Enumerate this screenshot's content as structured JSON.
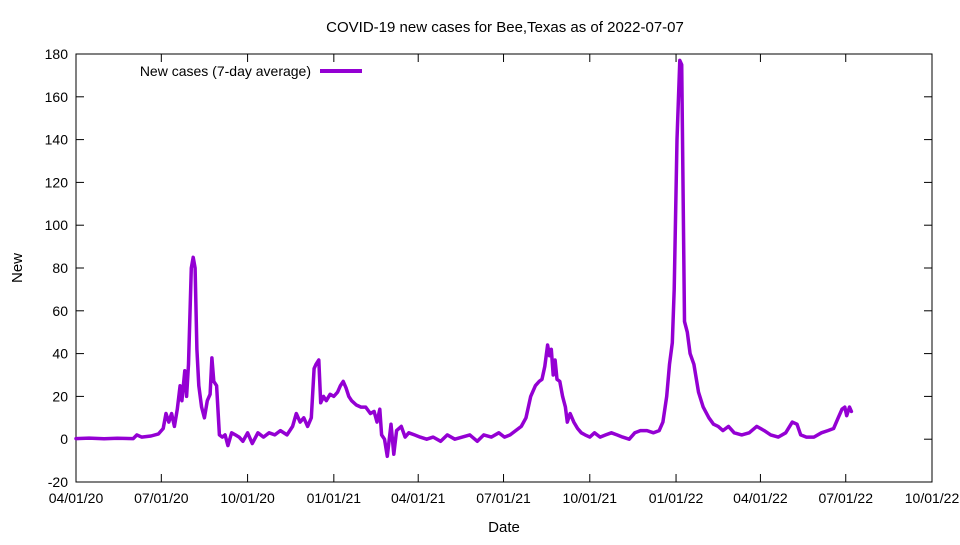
{
  "chart_data": {
    "type": "line",
    "title": "COVID-19 new cases for Bee,Texas as of 2022-07-07",
    "xlabel": "Date",
    "ylabel": "New",
    "xlim": [
      "2020-04-01",
      "2022-10-01"
    ],
    "ylim": [
      -20,
      180
    ],
    "x_ticks": [
      {
        "date": "2020-04-01",
        "label": "04/01/20"
      },
      {
        "date": "2020-07-01",
        "label": "07/01/20"
      },
      {
        "date": "2020-10-01",
        "label": "10/01/20"
      },
      {
        "date": "2021-01-01",
        "label": "01/01/21"
      },
      {
        "date": "2021-04-01",
        "label": "04/01/21"
      },
      {
        "date": "2021-07-01",
        "label": "07/01/21"
      },
      {
        "date": "2021-10-01",
        "label": "10/01/21"
      },
      {
        "date": "2022-01-01",
        "label": "01/01/22"
      },
      {
        "date": "2022-04-01",
        "label": "04/01/22"
      },
      {
        "date": "2022-07-01",
        "label": "07/01/22"
      },
      {
        "date": "2022-10-01",
        "label": "10/01/22"
      }
    ],
    "y_ticks": [
      -20,
      0,
      20,
      40,
      60,
      80,
      100,
      120,
      140,
      160,
      180
    ],
    "grid": false,
    "legend": {
      "position": "top-left"
    },
    "series": [
      {
        "name": "New cases (7-day average)",
        "color": "#9400d3",
        "points": [
          [
            "2020-04-01",
            0.3
          ],
          [
            "2020-04-15",
            0.5
          ],
          [
            "2020-05-01",
            0.2
          ],
          [
            "2020-05-15",
            0.4
          ],
          [
            "2020-06-01",
            0.3
          ],
          [
            "2020-06-05",
            2
          ],
          [
            "2020-06-10",
            1
          ],
          [
            "2020-06-20",
            1.5
          ],
          [
            "2020-06-28",
            2.5
          ],
          [
            "2020-07-03",
            5
          ],
          [
            "2020-07-06",
            12
          ],
          [
            "2020-07-09",
            8
          ],
          [
            "2020-07-12",
            12
          ],
          [
            "2020-07-15",
            6
          ],
          [
            "2020-07-18",
            14
          ],
          [
            "2020-07-21",
            25
          ],
          [
            "2020-07-23",
            18
          ],
          [
            "2020-07-26",
            32
          ],
          [
            "2020-07-28",
            20
          ],
          [
            "2020-07-30",
            35
          ],
          [
            "2020-08-02",
            80
          ],
          [
            "2020-08-04",
            85
          ],
          [
            "2020-08-06",
            80
          ],
          [
            "2020-08-08",
            42
          ],
          [
            "2020-08-10",
            25
          ],
          [
            "2020-08-13",
            15
          ],
          [
            "2020-08-16",
            10
          ],
          [
            "2020-08-19",
            18
          ],
          [
            "2020-08-22",
            21
          ],
          [
            "2020-08-24",
            38
          ],
          [
            "2020-08-26",
            27
          ],
          [
            "2020-08-29",
            25
          ],
          [
            "2020-09-01",
            2
          ],
          [
            "2020-09-04",
            1
          ],
          [
            "2020-09-07",
            2
          ],
          [
            "2020-09-10",
            -3
          ],
          [
            "2020-09-14",
            3
          ],
          [
            "2020-09-18",
            2
          ],
          [
            "2020-09-22",
            1
          ],
          [
            "2020-09-26",
            -1
          ],
          [
            "2020-10-01",
            3
          ],
          [
            "2020-10-06",
            -2
          ],
          [
            "2020-10-12",
            3
          ],
          [
            "2020-10-18",
            1
          ],
          [
            "2020-10-24",
            3
          ],
          [
            "2020-10-30",
            2
          ],
          [
            "2020-11-05",
            4
          ],
          [
            "2020-11-12",
            2
          ],
          [
            "2020-11-18",
            6
          ],
          [
            "2020-11-22",
            12
          ],
          [
            "2020-11-26",
            8
          ],
          [
            "2020-11-30",
            10
          ],
          [
            "2020-12-04",
            6
          ],
          [
            "2020-12-08",
            10
          ],
          [
            "2020-12-11",
            33
          ],
          [
            "2020-12-13",
            35
          ],
          [
            "2020-12-16",
            37
          ],
          [
            "2020-12-18",
            17
          ],
          [
            "2020-12-21",
            20
          ],
          [
            "2020-12-24",
            18
          ],
          [
            "2020-12-28",
            21
          ],
          [
            "2021-01-01",
            20
          ],
          [
            "2021-01-05",
            22
          ],
          [
            "2021-01-08",
            25
          ],
          [
            "2021-01-11",
            27
          ],
          [
            "2021-01-14",
            24
          ],
          [
            "2021-01-17",
            20
          ],
          [
            "2021-01-20",
            18
          ],
          [
            "2021-01-25",
            16
          ],
          [
            "2021-01-30",
            15
          ],
          [
            "2021-02-04",
            15
          ],
          [
            "2021-02-09",
            12
          ],
          [
            "2021-02-13",
            13
          ],
          [
            "2021-02-16",
            8
          ],
          [
            "2021-02-19",
            14
          ],
          [
            "2021-02-21",
            2
          ],
          [
            "2021-02-24",
            0
          ],
          [
            "2021-02-27",
            -8
          ],
          [
            "2021-03-03",
            7
          ],
          [
            "2021-03-06",
            -7
          ],
          [
            "2021-03-09",
            4
          ],
          [
            "2021-03-14",
            6
          ],
          [
            "2021-03-18",
            1
          ],
          [
            "2021-03-22",
            3
          ],
          [
            "2021-03-28",
            2
          ],
          [
            "2021-04-03",
            1
          ],
          [
            "2021-04-10",
            0
          ],
          [
            "2021-04-17",
            1
          ],
          [
            "2021-04-25",
            -1
          ],
          [
            "2021-05-02",
            2
          ],
          [
            "2021-05-10",
            0
          ],
          [
            "2021-05-18",
            1
          ],
          [
            "2021-05-26",
            2
          ],
          [
            "2021-06-03",
            -1
          ],
          [
            "2021-06-10",
            2
          ],
          [
            "2021-06-18",
            1
          ],
          [
            "2021-06-26",
            3
          ],
          [
            "2021-07-02",
            1
          ],
          [
            "2021-07-08",
            2
          ],
          [
            "2021-07-14",
            4
          ],
          [
            "2021-07-20",
            6
          ],
          [
            "2021-07-25",
            10
          ],
          [
            "2021-07-30",
            20
          ],
          [
            "2021-08-04",
            25
          ],
          [
            "2021-08-08",
            27
          ],
          [
            "2021-08-11",
            28
          ],
          [
            "2021-08-14",
            34
          ],
          [
            "2021-08-17",
            44
          ],
          [
            "2021-08-19",
            39
          ],
          [
            "2021-08-21",
            42
          ],
          [
            "2021-08-23",
            30
          ],
          [
            "2021-08-25",
            37
          ],
          [
            "2021-08-27",
            28
          ],
          [
            "2021-08-30",
            27
          ],
          [
            "2021-09-02",
            20
          ],
          [
            "2021-09-05",
            15
          ],
          [
            "2021-09-07",
            8
          ],
          [
            "2021-09-10",
            12
          ],
          [
            "2021-09-14",
            8
          ],
          [
            "2021-09-18",
            5
          ],
          [
            "2021-09-22",
            3
          ],
          [
            "2021-09-26",
            2
          ],
          [
            "2021-10-01",
            1
          ],
          [
            "2021-10-06",
            3
          ],
          [
            "2021-10-12",
            1
          ],
          [
            "2021-10-18",
            2
          ],
          [
            "2021-10-24",
            3
          ],
          [
            "2021-10-30",
            2
          ],
          [
            "2021-11-05",
            1
          ],
          [
            "2021-11-12",
            0
          ],
          [
            "2021-11-18",
            3
          ],
          [
            "2021-11-24",
            4
          ],
          [
            "2021-12-01",
            4
          ],
          [
            "2021-12-08",
            3
          ],
          [
            "2021-12-14",
            4
          ],
          [
            "2021-12-18",
            8
          ],
          [
            "2021-12-22",
            20
          ],
          [
            "2021-12-25",
            35
          ],
          [
            "2021-12-28",
            45
          ],
          [
            "2021-12-30",
            70
          ],
          [
            "2022-01-02",
            140
          ],
          [
            "2022-01-05",
            177
          ],
          [
            "2022-01-07",
            175
          ],
          [
            "2022-01-10",
            55
          ],
          [
            "2022-01-13",
            50
          ],
          [
            "2022-01-16",
            40
          ],
          [
            "2022-01-20",
            35
          ],
          [
            "2022-01-25",
            22
          ],
          [
            "2022-01-30",
            15
          ],
          [
            "2022-02-05",
            10
          ],
          [
            "2022-02-10",
            7
          ],
          [
            "2022-02-15",
            6
          ],
          [
            "2022-02-20",
            4
          ],
          [
            "2022-02-26",
            6
          ],
          [
            "2022-03-04",
            3
          ],
          [
            "2022-03-12",
            2
          ],
          [
            "2022-03-20",
            3
          ],
          [
            "2022-03-28",
            6
          ],
          [
            "2022-04-05",
            4
          ],
          [
            "2022-04-12",
            2
          ],
          [
            "2022-04-20",
            1
          ],
          [
            "2022-04-28",
            3
          ],
          [
            "2022-05-05",
            8
          ],
          [
            "2022-05-10",
            7
          ],
          [
            "2022-05-14",
            2
          ],
          [
            "2022-05-20",
            1
          ],
          [
            "2022-05-28",
            1
          ],
          [
            "2022-06-05",
            3
          ],
          [
            "2022-06-12",
            4
          ],
          [
            "2022-06-18",
            5
          ],
          [
            "2022-06-23",
            10
          ],
          [
            "2022-06-27",
            14
          ],
          [
            "2022-06-30",
            15
          ],
          [
            "2022-07-02",
            11
          ],
          [
            "2022-07-05",
            15
          ],
          [
            "2022-07-07",
            13
          ]
        ]
      }
    ]
  }
}
